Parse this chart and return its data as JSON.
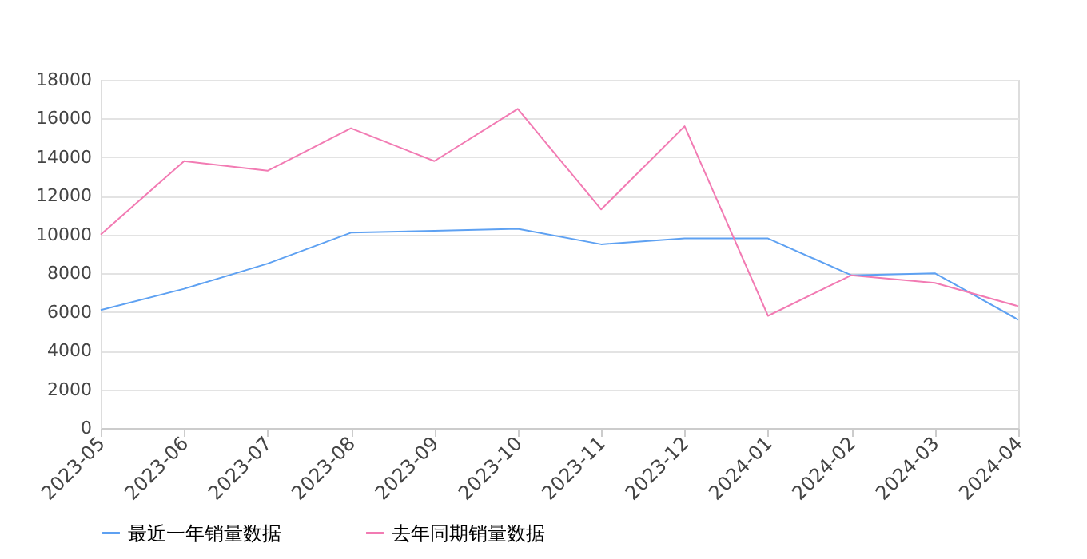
{
  "chart_data": {
    "type": "line",
    "categories": [
      "2023-05",
      "2023-06",
      "2023-07",
      "2023-08",
      "2023-09",
      "2023-10",
      "2023-11",
      "2023-12",
      "2024-01",
      "2024-02",
      "2024-03",
      "2024-04"
    ],
    "series": [
      {
        "name": "最近一年销量数据",
        "color": "#5ea1f2",
        "values": [
          6100,
          7200,
          8500,
          10100,
          10200,
          10300,
          9500,
          9800,
          9800,
          7900,
          8000,
          5600
        ]
      },
      {
        "name": "去年同期销量数据",
        "color": "#f27bb3",
        "values": [
          10000,
          13800,
          13300,
          15500,
          13800,
          16500,
          11300,
          15600,
          5800,
          7900,
          7500,
          6300
        ]
      }
    ],
    "ylim": [
      0,
      18000
    ],
    "yticks": [
      0,
      2000,
      4000,
      6000,
      8000,
      10000,
      12000,
      14000,
      16000,
      18000
    ],
    "grid": "y",
    "legend": "bottom",
    "marker": "none",
    "line_style": "solid"
  }
}
